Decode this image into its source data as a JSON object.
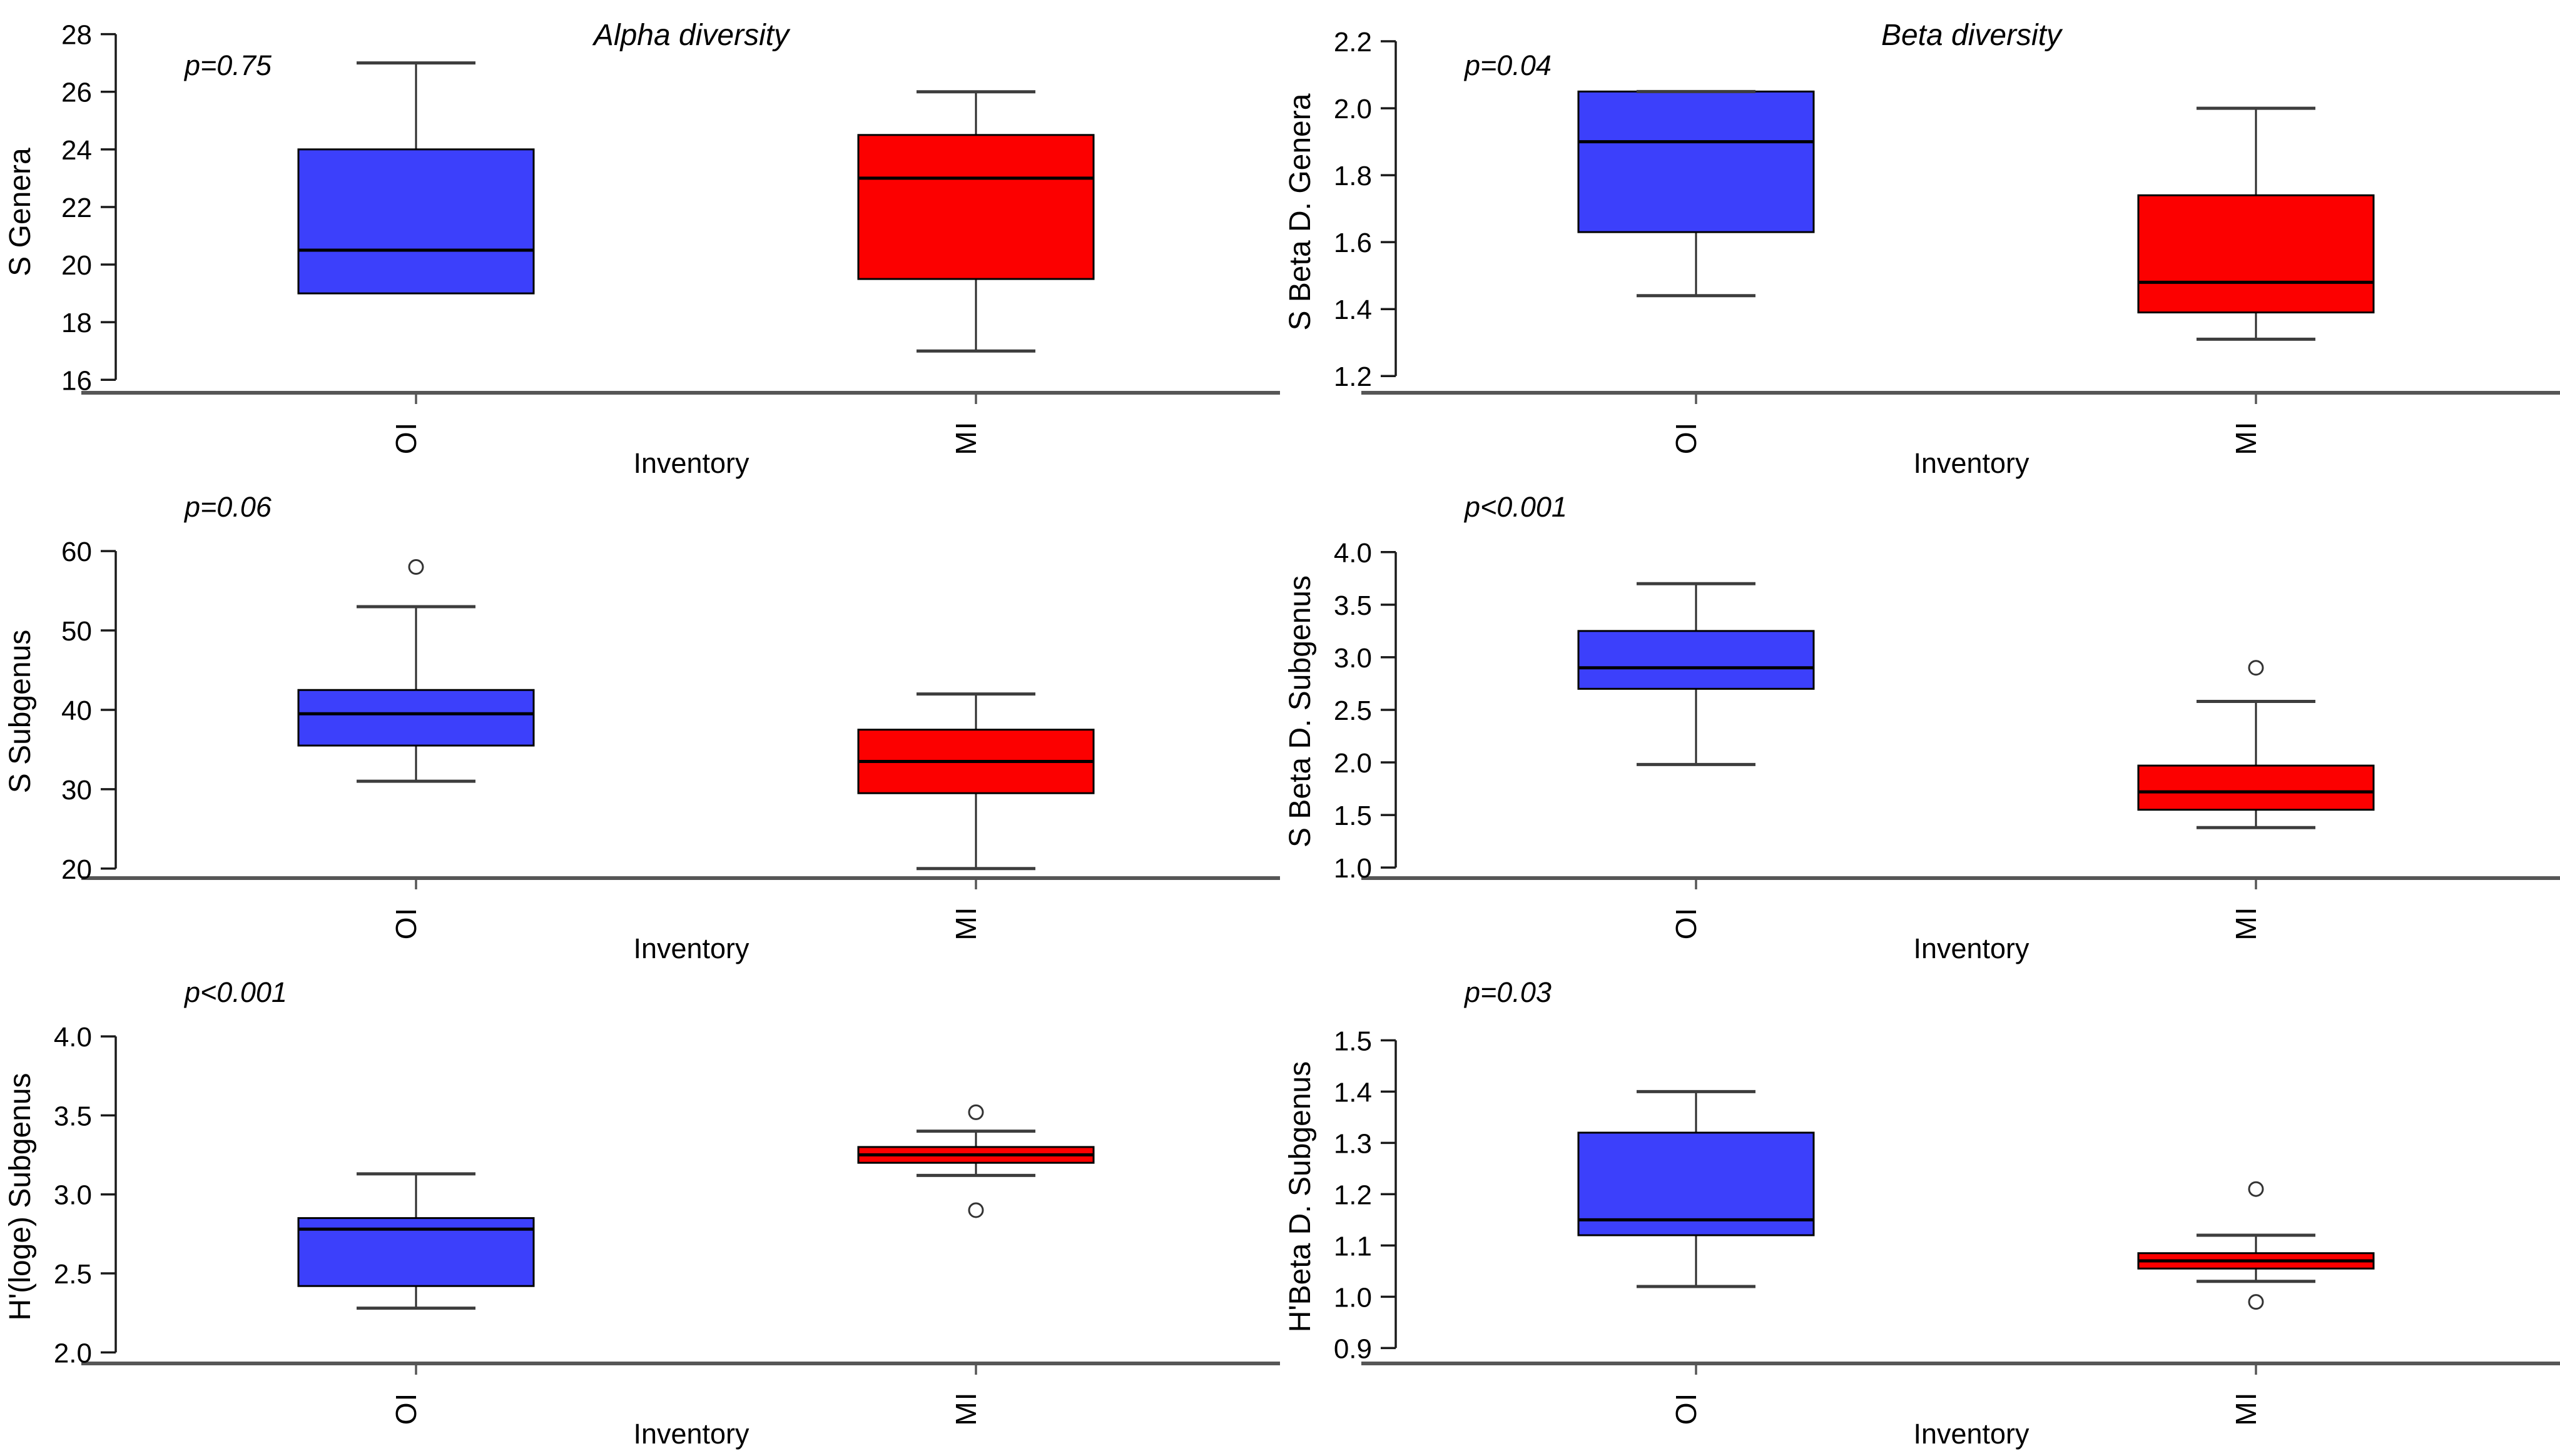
{
  "style": {
    "blue": "#3c40fb",
    "red": "#fc0000",
    "box_border": "#000000",
    "median_color": "#000000",
    "whisker_stem": "#2a2a2a",
    "whisker_cap": "#3d3d3d",
    "outlier_stroke": "#333333",
    "y_axis_color": "#1a1a1a",
    "x_axis_color": "#565656",
    "text_color": "#000000"
  },
  "figure": {
    "column_titles": [
      "Alpha diversity",
      "Beta diversity"
    ],
    "x_axis_title": "Inventory",
    "group_labels": [
      "OI",
      "MI"
    ]
  },
  "chart_data": [
    {
      "type": "box",
      "title": "Alpha diversity",
      "p_label": "p=0.75",
      "ylabel": "S Genera",
      "xlabel": "Inventory",
      "categories": [
        "OI",
        "MI"
      ],
      "yticks": [
        "16",
        "18",
        "20",
        "22",
        "24",
        "26",
        "28"
      ],
      "ylim": [
        15.55,
        28.1
      ],
      "series": [
        {
          "name": "OI",
          "color_key": "blue",
          "q1": 19,
          "median": 20.5,
          "q3": 24,
          "whisker_low": null,
          "whisker_high": 27,
          "outliers": []
        },
        {
          "name": "MI",
          "color_key": "red",
          "q1": 19.5,
          "median": 23,
          "q3": 24.5,
          "whisker_low": 17,
          "whisker_high": 26,
          "outliers": []
        }
      ]
    },
    {
      "type": "box",
      "title": "Beta diversity",
      "p_label": "p=0.04",
      "ylabel": "S Beta D. Genera",
      "xlabel": "Inventory",
      "categories": [
        "OI",
        "MI"
      ],
      "yticks": [
        "1.2",
        "1.4",
        "1.6",
        "1.8",
        "2.0",
        "2.2"
      ],
      "ylim": [
        1.15,
        2.23
      ],
      "series": [
        {
          "name": "OI",
          "color_key": "blue",
          "q1": 1.63,
          "median": 1.9,
          "q3": 2.05,
          "whisker_low": 1.44,
          "whisker_high": 2.05,
          "outliers": []
        },
        {
          "name": "MI",
          "color_key": "red",
          "q1": 1.39,
          "median": 1.48,
          "q3": 1.74,
          "whisker_low": 1.31,
          "whisker_high": 2.0,
          "outliers": []
        }
      ]
    },
    {
      "type": "box",
      "p_label": "p=0.06",
      "ylabel": "S Subgenus",
      "xlabel": "Inventory",
      "categories": [
        "OI",
        "MI"
      ],
      "yticks": [
        "20",
        "30",
        "40",
        "50",
        "60"
      ],
      "ylim": [
        18.8,
        60.8
      ],
      "series": [
        {
          "name": "OI",
          "color_key": "blue",
          "q1": 35.5,
          "median": 39.5,
          "q3": 42.5,
          "whisker_low": 31,
          "whisker_high": 53,
          "outliers": [
            58
          ]
        },
        {
          "name": "MI",
          "color_key": "red",
          "q1": 29.5,
          "median": 33.5,
          "q3": 37.5,
          "whisker_low": 20,
          "whisker_high": 42,
          "outliers": []
        }
      ]
    },
    {
      "type": "box",
      "p_label": "p<0.001",
      "ylabel": "S Beta D. Subgenus",
      "xlabel": "Inventory",
      "categories": [
        "OI",
        "MI"
      ],
      "yticks": [
        "1.0",
        "1.5",
        "2.0",
        "2.5",
        "3.0",
        "3.5",
        "4.0"
      ],
      "ylim": [
        0.9,
        4.07
      ],
      "series": [
        {
          "name": "OI",
          "color_key": "blue",
          "q1": 2.7,
          "median": 2.9,
          "q3": 3.25,
          "whisker_low": 1.98,
          "whisker_high": 3.7,
          "outliers": []
        },
        {
          "name": "MI",
          "color_key": "red",
          "q1": 1.55,
          "median": 1.72,
          "q3": 1.97,
          "whisker_low": 1.38,
          "whisker_high": 2.58,
          "outliers": [
            2.9
          ]
        }
      ]
    },
    {
      "type": "box",
      "p_label": "p<0.001",
      "ylabel": "H'(loge) Subgenus",
      "xlabel": "Inventory",
      "categories": [
        "OI",
        "MI"
      ],
      "yticks": [
        "2.0",
        "2.5",
        "3.0",
        "3.5",
        "4.0"
      ],
      "ylim": [
        1.93,
        4.04
      ],
      "series": [
        {
          "name": "OI",
          "color_key": "blue",
          "q1": 2.42,
          "median": 2.78,
          "q3": 2.85,
          "whisker_low": 2.28,
          "whisker_high": 3.13,
          "outliers": []
        },
        {
          "name": "MI",
          "color_key": "red",
          "q1": 3.2,
          "median": 3.25,
          "q3": 3.3,
          "whisker_low": 3.12,
          "whisker_high": 3.4,
          "outliers": [
            3.52,
            2.9
          ]
        }
      ]
    },
    {
      "type": "box",
      "p_label": "p=0.03",
      "ylabel": "H'Beta D. Subgenus",
      "xlabel": "Inventory",
      "categories": [
        "OI",
        "MI"
      ],
      "yticks": [
        "0.9",
        "1.0",
        "1.1",
        "1.2",
        "1.3",
        "1.4",
        "1.5"
      ],
      "ylim": [
        0.87,
        1.52
      ],
      "series": [
        {
          "name": "OI",
          "color_key": "blue",
          "q1": 1.12,
          "median": 1.15,
          "q3": 1.32,
          "whisker_low": 1.02,
          "whisker_high": 1.4,
          "outliers": []
        },
        {
          "name": "MI",
          "color_key": "red",
          "q1": 1.055,
          "median": 1.07,
          "q3": 1.085,
          "whisker_low": 1.03,
          "whisker_high": 1.12,
          "outliers": [
            1.21,
            0.99
          ]
        }
      ]
    }
  ]
}
